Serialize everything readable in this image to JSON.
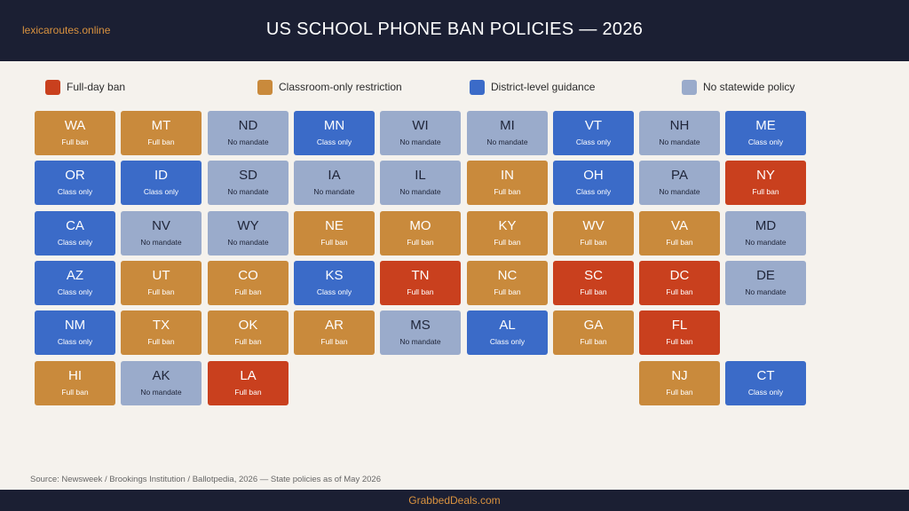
{
  "header": {
    "site": "lexicaroutes.online",
    "title": "US SCHOOL PHONE BAN POLICIES — 2026"
  },
  "colors": {
    "full": "#c9401e",
    "classroom": "#c98a3c",
    "district": "#3b6bc8",
    "none": "#9aabcb"
  },
  "legend": [
    {
      "key": "full",
      "label": "Full-day ban"
    },
    {
      "key": "classroom",
      "label": "Classroom-only restriction"
    },
    {
      "key": "district",
      "label": "District-level guidance"
    },
    {
      "key": "none",
      "label": "No statewide policy"
    }
  ],
  "rows": [
    [
      {
        "abbr": "WA",
        "status": "Full ban",
        "key": "classroom"
      },
      {
        "abbr": "MT",
        "status": "Full ban",
        "key": "classroom"
      },
      {
        "abbr": "ND",
        "status": "No mandate",
        "key": "none"
      },
      {
        "abbr": "MN",
        "status": "Class only",
        "key": "district"
      },
      {
        "abbr": "WI",
        "status": "No mandate",
        "key": "none"
      },
      {
        "abbr": "MI",
        "status": "No mandate",
        "key": "none"
      },
      {
        "abbr": "VT",
        "status": "Class only",
        "key": "district"
      },
      {
        "abbr": "NH",
        "status": "No mandate",
        "key": "none"
      },
      {
        "abbr": "ME",
        "status": "Class only",
        "key": "district"
      }
    ],
    [
      {
        "abbr": "OR",
        "status": "Class only",
        "key": "district"
      },
      {
        "abbr": "ID",
        "status": "Class only",
        "key": "district"
      },
      {
        "abbr": "SD",
        "status": "No mandate",
        "key": "none"
      },
      {
        "abbr": "IA",
        "status": "No mandate",
        "key": "none"
      },
      {
        "abbr": "IL",
        "status": "No mandate",
        "key": "none"
      },
      {
        "abbr": "IN",
        "status": "Full ban",
        "key": "classroom"
      },
      {
        "abbr": "OH",
        "status": "Class only",
        "key": "district"
      },
      {
        "abbr": "PA",
        "status": "No mandate",
        "key": "none"
      },
      {
        "abbr": "NY",
        "status": "Full ban",
        "key": "full"
      }
    ],
    [
      {
        "abbr": "CA",
        "status": "Class only",
        "key": "district"
      },
      {
        "abbr": "NV",
        "status": "No mandate",
        "key": "none"
      },
      {
        "abbr": "WY",
        "status": "No mandate",
        "key": "none"
      },
      {
        "abbr": "NE",
        "status": "Full ban",
        "key": "classroom"
      },
      {
        "abbr": "MO",
        "status": "Full ban",
        "key": "classroom"
      },
      {
        "abbr": "KY",
        "status": "Full ban",
        "key": "classroom"
      },
      {
        "abbr": "WV",
        "status": "Full ban",
        "key": "classroom"
      },
      {
        "abbr": "VA",
        "status": "Full ban",
        "key": "classroom"
      },
      {
        "abbr": "MD",
        "status": "No mandate",
        "key": "none"
      }
    ],
    [
      {
        "abbr": "AZ",
        "status": "Class only",
        "key": "district"
      },
      {
        "abbr": "UT",
        "status": "Full ban",
        "key": "classroom"
      },
      {
        "abbr": "CO",
        "status": "Full ban",
        "key": "classroom"
      },
      {
        "abbr": "KS",
        "status": "Class only",
        "key": "district"
      },
      {
        "abbr": "TN",
        "status": "Full ban",
        "key": "full"
      },
      {
        "abbr": "NC",
        "status": "Full ban",
        "key": "classroom"
      },
      {
        "abbr": "SC",
        "status": "Full ban",
        "key": "full"
      },
      {
        "abbr": "DC",
        "status": "Full ban",
        "key": "full"
      },
      {
        "abbr": "DE",
        "status": "No mandate",
        "key": "none"
      }
    ],
    [
      {
        "abbr": "NM",
        "status": "Class only",
        "key": "district"
      },
      {
        "abbr": "TX",
        "status": "Full ban",
        "key": "classroom"
      },
      {
        "abbr": "OK",
        "status": "Full ban",
        "key": "classroom"
      },
      {
        "abbr": "AR",
        "status": "Full ban",
        "key": "classroom"
      },
      {
        "abbr": "MS",
        "status": "No mandate",
        "key": "none"
      },
      {
        "abbr": "AL",
        "status": "Class only",
        "key": "district"
      },
      {
        "abbr": "GA",
        "status": "Full ban",
        "key": "classroom"
      },
      {
        "abbr": "FL",
        "status": "Full ban",
        "key": "full"
      },
      null
    ],
    [
      {
        "abbr": "HI",
        "status": "Full ban",
        "key": "classroom"
      },
      {
        "abbr": "AK",
        "status": "No mandate",
        "key": "none"
      },
      {
        "abbr": "LA",
        "status": "Full ban",
        "key": "full"
      },
      null,
      null,
      null,
      null,
      {
        "abbr": "NJ",
        "status": "Full ban",
        "key": "classroom"
      },
      {
        "abbr": "CT",
        "status": "Class only",
        "key": "district"
      }
    ]
  ],
  "source": "Source: Newsweek / Brookings Institution / Ballotpedia, 2026 — State policies as of May 2026",
  "footer": "GrabbedDeals.com"
}
